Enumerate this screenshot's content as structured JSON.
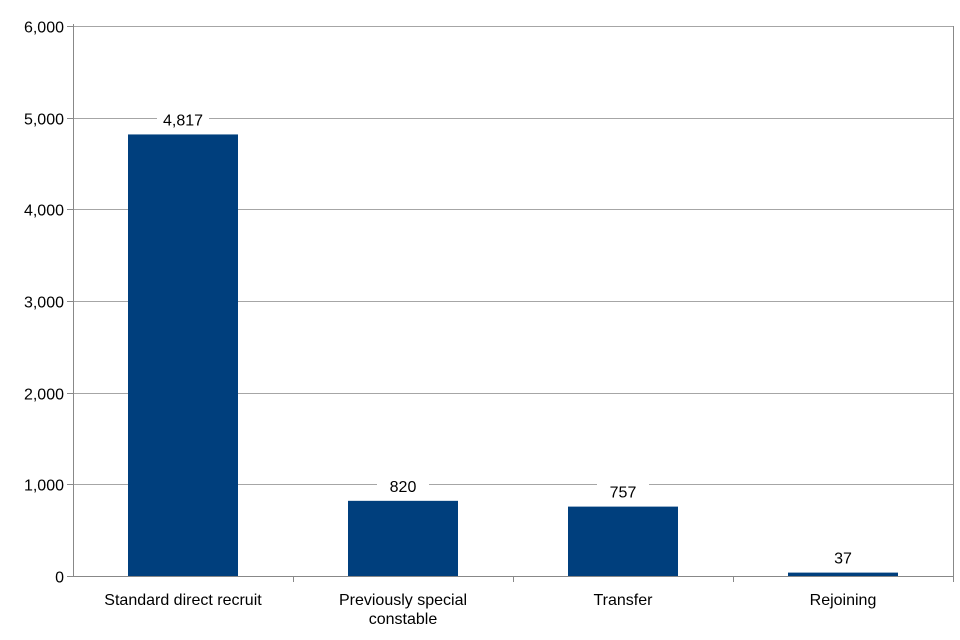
{
  "chart_data": {
    "type": "bar",
    "title": "",
    "xlabel": "",
    "ylabel": "",
    "categories": [
      [
        "Standard direct recruit"
      ],
      [
        "Previously special",
        "constable"
      ],
      [
        "Transfer"
      ],
      [
        "Rejoining"
      ]
    ],
    "values": [
      4817,
      820,
      757,
      37
    ],
    "value_labels": [
      "4,817",
      "820",
      "757",
      "37"
    ],
    "ylim": [
      0,
      6000
    ],
    "yticks": [
      0,
      1000,
      2000,
      3000,
      4000,
      5000,
      6000
    ],
    "ytick_labels": [
      "0",
      "1,000",
      "2,000",
      "3,000",
      "4,000",
      "5,000",
      "6,000"
    ],
    "grid": true,
    "legend": "none",
    "bar_color": "#003f7d"
  }
}
